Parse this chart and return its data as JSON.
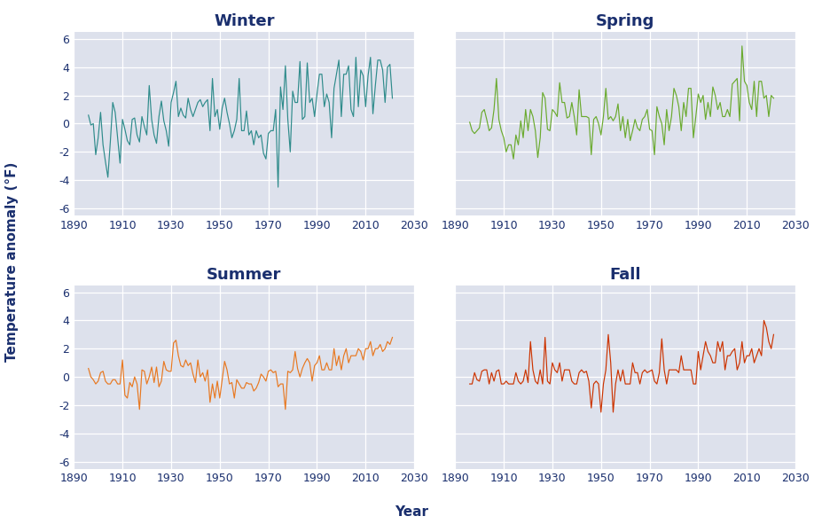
{
  "title_fontsize": 13,
  "axis_label_fontsize": 11,
  "tick_fontsize": 9,
  "ylabel": "Temperature anomaly (°F)",
  "xlabel": "Year",
  "bg_color": "#dde1ec",
  "fig_bg_color": "#ffffff",
  "grid_color": "#ffffff",
  "title_color": "#1a2f6e",
  "tick_color": "#1a2f6e",
  "label_color": "#1a2f6e",
  "line_colors": [
    "#2e8b8b",
    "#6aaa2e",
    "#e87820",
    "#cc3300"
  ],
  "seasons": [
    "Winter",
    "Spring",
    "Summer",
    "Fall"
  ],
  "ylim": [
    -6.5,
    6.5
  ],
  "yticks": [
    -6,
    -4,
    -2,
    0,
    2,
    4,
    6
  ],
  "xlim": [
    1890,
    2030
  ],
  "xticks": [
    1890,
    1910,
    1930,
    1950,
    1970,
    1990,
    2010,
    2030
  ],
  "years": [
    1896,
    1897,
    1898,
    1899,
    1900,
    1901,
    1902,
    1903,
    1904,
    1905,
    1906,
    1907,
    1908,
    1909,
    1910,
    1911,
    1912,
    1913,
    1914,
    1915,
    1916,
    1917,
    1918,
    1919,
    1920,
    1921,
    1922,
    1923,
    1924,
    1925,
    1926,
    1927,
    1928,
    1929,
    1930,
    1931,
    1932,
    1933,
    1934,
    1935,
    1936,
    1937,
    1938,
    1939,
    1940,
    1941,
    1942,
    1943,
    1944,
    1945,
    1946,
    1947,
    1948,
    1949,
    1950,
    1951,
    1952,
    1953,
    1954,
    1955,
    1956,
    1957,
    1958,
    1959,
    1960,
    1961,
    1962,
    1963,
    1964,
    1965,
    1966,
    1967,
    1968,
    1969,
    1970,
    1971,
    1972,
    1973,
    1974,
    1975,
    1976,
    1977,
    1978,
    1979,
    1980,
    1981,
    1982,
    1983,
    1984,
    1985,
    1986,
    1987,
    1988,
    1989,
    1990,
    1991,
    1992,
    1993,
    1994,
    1995,
    1996,
    1997,
    1998,
    1999,
    2000,
    2001,
    2002,
    2003,
    2004,
    2005,
    2006,
    2007,
    2008,
    2009,
    2010,
    2011,
    2012,
    2013,
    2014,
    2015,
    2016,
    2017,
    2018,
    2019,
    2020,
    2021
  ],
  "winter": [
    0.6,
    -0.1,
    0.0,
    -2.2,
    -1.0,
    0.8,
    -1.5,
    -2.7,
    -3.8,
    -1.3,
    1.5,
    0.8,
    -1.0,
    -2.8,
    0.3,
    -0.4,
    -1.2,
    -1.5,
    0.3,
    0.4,
    -0.8,
    -1.3,
    0.5,
    -0.2,
    -0.8,
    2.7,
    0.3,
    -0.8,
    -1.4,
    0.5,
    1.6,
    0.2,
    -0.5,
    -1.6,
    1.5,
    2.2,
    3.0,
    0.5,
    1.1,
    0.6,
    0.4,
    1.8,
    1.0,
    0.5,
    1.0,
    1.5,
    1.7,
    1.2,
    1.5,
    1.7,
    -0.5,
    3.2,
    0.5,
    1.0,
    -0.4,
    1.1,
    1.8,
    0.8,
    0.0,
    -1.0,
    -0.5,
    0.3,
    3.2,
    -0.5,
    -0.5,
    0.9,
    -0.8,
    -0.5,
    -1.5,
    -0.5,
    -1.0,
    -0.8,
    -2.1,
    -2.5,
    -0.7,
    -0.5,
    -0.5,
    1.0,
    -4.5,
    2.6,
    1.0,
    4.1,
    0.3,
    -2.0,
    2.3,
    1.5,
    1.5,
    4.4,
    0.3,
    0.5,
    4.3,
    1.5,
    1.8,
    0.5,
    2.1,
    3.5,
    3.5,
    1.2,
    2.1,
    1.5,
    -1.0,
    2.5,
    3.5,
    4.5,
    0.5,
    3.5,
    3.5,
    4.1,
    1.0,
    0.5,
    4.7,
    1.2,
    3.8,
    3.4,
    1.2,
    3.4,
    4.7,
    0.7,
    2.7,
    4.5,
    4.5,
    3.8,
    1.5,
    4.0,
    4.2,
    1.8
  ],
  "spring": [
    0.1,
    -0.5,
    -0.7,
    -0.5,
    -0.3,
    0.8,
    1.0,
    0.3,
    -0.5,
    -0.3,
    1.0,
    3.2,
    0.3,
    -0.5,
    -1.0,
    -2.0,
    -1.5,
    -1.5,
    -2.5,
    -0.8,
    -1.5,
    0.2,
    -1.0,
    1.0,
    -0.5,
    1.0,
    0.5,
    -0.5,
    -2.4,
    -1.0,
    2.2,
    1.8,
    -0.4,
    -0.5,
    1.0,
    0.8,
    0.5,
    2.9,
    1.5,
    1.5,
    0.4,
    0.5,
    1.5,
    0.5,
    -0.8,
    2.4,
    0.5,
    0.5,
    0.5,
    0.4,
    -2.2,
    0.3,
    0.5,
    0.0,
    -0.8,
    0.5,
    2.5,
    0.3,
    0.5,
    0.2,
    0.5,
    1.4,
    -0.5,
    0.5,
    -1.0,
    0.3,
    -1.2,
    -0.5,
    0.3,
    -0.3,
    -0.5,
    0.3,
    0.5,
    1.0,
    -0.4,
    -0.5,
    -2.2,
    1.2,
    0.5,
    0.0,
    -1.5,
    1.0,
    -0.5,
    0.5,
    2.5,
    2.0,
    1.2,
    -0.5,
    1.5,
    0.5,
    2.5,
    2.5,
    -1.0,
    0.5,
    2.1,
    1.5,
    2.0,
    0.3,
    1.5,
    0.5,
    2.6,
    2.0,
    1.0,
    1.5,
    0.5,
    0.5,
    1.0,
    0.5,
    2.8,
    3.0,
    3.2,
    0.2,
    5.5,
    3.0,
    2.7,
    1.5,
    1.0,
    3.0,
    0.5,
    3.0,
    3.0,
    1.8,
    2.0,
    0.5,
    2.0,
    1.8
  ],
  "summer": [
    0.6,
    0.0,
    -0.2,
    -0.5,
    -0.3,
    0.3,
    0.4,
    -0.3,
    -0.5,
    -0.5,
    -0.2,
    -0.2,
    -0.5,
    -0.5,
    1.2,
    -1.3,
    -1.5,
    -0.4,
    -0.7,
    0.0,
    -0.5,
    -2.3,
    0.5,
    0.4,
    -0.5,
    0.0,
    0.7,
    -0.4,
    0.7,
    -0.7,
    -0.3,
    1.1,
    0.5,
    0.4,
    0.4,
    2.4,
    2.6,
    1.5,
    0.8,
    0.7,
    1.2,
    0.8,
    1.0,
    0.2,
    -0.4,
    1.2,
    0.0,
    0.3,
    -0.3,
    0.5,
    -1.8,
    -0.5,
    -1.5,
    -0.3,
    -1.5,
    -0.2,
    1.1,
    0.5,
    -0.5,
    -0.4,
    -1.5,
    -0.2,
    -0.5,
    -0.8,
    -0.8,
    -0.4,
    -0.5,
    -0.5,
    -1.0,
    -0.8,
    -0.4,
    0.2,
    0.0,
    -0.3,
    0.4,
    0.5,
    0.3,
    0.4,
    -0.7,
    -0.5,
    -0.5,
    -2.3,
    0.4,
    0.3,
    0.5,
    1.8,
    0.6,
    0.0,
    0.6,
    1.0,
    1.3,
    1.0,
    -0.3,
    0.8,
    1.0,
    1.5,
    0.5,
    0.5,
    1.0,
    0.5,
    0.5,
    2.0,
    0.8,
    1.5,
    0.5,
    1.5,
    2.0,
    1.0,
    1.5,
    1.5,
    1.5,
    2.0,
    1.8,
    1.2,
    2.0,
    2.0,
    2.5,
    1.5,
    2.0,
    2.0,
    2.3,
    1.8,
    2.0,
    2.5,
    2.3,
    2.8
  ],
  "fall": [
    -0.5,
    -0.5,
    0.3,
    -0.2,
    -0.3,
    0.4,
    0.5,
    0.5,
    -0.5,
    0.3,
    -0.3,
    0.4,
    0.5,
    -0.5,
    -0.5,
    -0.3,
    -0.5,
    -0.5,
    -0.5,
    0.3,
    -0.3,
    -0.5,
    -0.3,
    0.5,
    -0.4,
    2.5,
    0.5,
    -0.3,
    -0.5,
    0.5,
    -0.5,
    2.8,
    -0.3,
    -0.5,
    1.0,
    0.5,
    0.3,
    1.0,
    -0.3,
    0.5,
    0.5,
    0.5,
    -0.3,
    -0.5,
    -0.5,
    0.3,
    0.5,
    0.3,
    0.4,
    -0.3,
    -2.2,
    -0.5,
    -0.3,
    -0.5,
    -2.5,
    -0.5,
    0.5,
    3.0,
    1.0,
    -2.5,
    -0.5,
    0.5,
    -0.3,
    0.5,
    -0.5,
    -0.5,
    -0.5,
    1.0,
    0.3,
    0.3,
    -0.5,
    0.3,
    0.5,
    0.3,
    0.4,
    0.5,
    -0.3,
    -0.5,
    0.3,
    2.7,
    0.5,
    -0.5,
    0.5,
    0.5,
    0.5,
    0.5,
    0.3,
    1.5,
    0.5,
    0.5,
    0.5,
    0.5,
    -0.5,
    -0.5,
    1.8,
    0.5,
    1.5,
    2.5,
    1.8,
    1.5,
    1.0,
    1.0,
    2.5,
    1.8,
    2.5,
    0.5,
    1.5,
    1.5,
    1.8,
    2.0,
    0.5,
    1.0,
    2.5,
    1.0,
    1.5,
    1.5,
    2.0,
    1.0,
    1.5,
    2.0,
    1.5,
    4.0,
    3.5,
    2.5,
    2.0,
    3.0
  ]
}
